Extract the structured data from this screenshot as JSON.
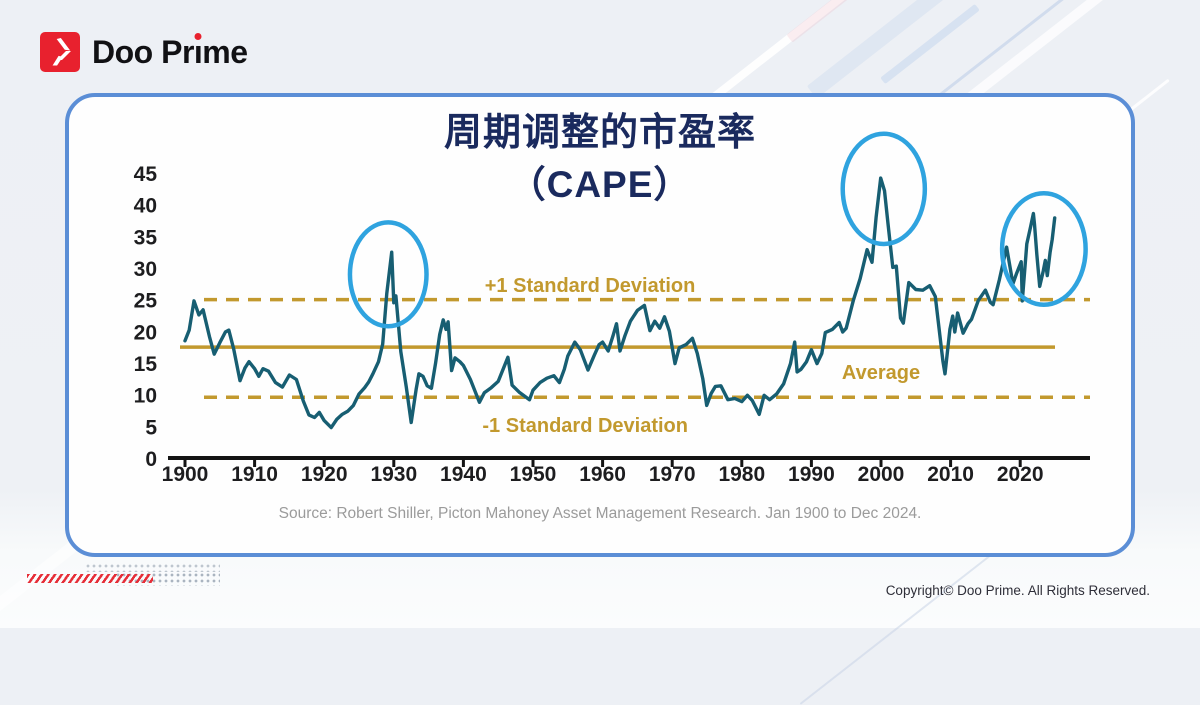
{
  "brand": {
    "part1": "Doo Pr",
    "i_letter": "ı",
    "part2": "me",
    "full_name": "Doo Prime"
  },
  "chart_data": {
    "type": "line",
    "title_line1": "周期调整的市盈率",
    "title_line2": "（CAPE）",
    "source": "Source: Robert Shiller, Picton Mahoney Asset Management Research. Jan 1900 to Dec 2024.",
    "x_ticks": [
      1900,
      1910,
      1920,
      1930,
      1940,
      1950,
      1960,
      1970,
      1980,
      1990,
      2000,
      2010,
      2020
    ],
    "y_ticks": [
      0,
      5,
      10,
      15,
      20,
      25,
      30,
      35,
      40,
      45
    ],
    "xlim": [
      1897,
      2026
    ],
    "ylim": [
      0,
      47
    ],
    "grid": false,
    "line_color": "#175E72",
    "axis_color": "#141414",
    "reference_lines": [
      {
        "label": "+1 Standard Deviation",
        "value": 25,
        "style": "dashed",
        "color": "#C2992E",
        "label_year": 1958.2,
        "label_value": 26.2
      },
      {
        "label": "Average",
        "value": 17.5,
        "style": "solid",
        "color": "#C2992E",
        "label_year": 2000.0,
        "label_value": 12.5
      },
      {
        "label": "-1 Standard Deviation",
        "value": 9.6,
        "style": "dashed",
        "color": "#C2992E",
        "label_year": 1957.5,
        "label_value": 4.1
      }
    ],
    "annotations": {
      "circle_color": "#2FA3DF",
      "circles": [
        {
          "year": 1929.2,
          "value": 29.0,
          "rx_years": 5.5,
          "ry_values": 8.2,
          "name": "1929-peak-circle"
        },
        {
          "year": 2000.4,
          "value": 42.5,
          "rx_years": 5.9,
          "ry_values": 8.7,
          "name": "2000-peak-circle"
        },
        {
          "year": 2023.4,
          "value": 33.0,
          "rx_years": 6.0,
          "ry_values": 8.8,
          "name": "2021-2024-peak-circle"
        }
      ]
    },
    "series": [
      {
        "name": "CAPE",
        "color": "#175E72",
        "points": [
          [
            1900,
            18.5
          ],
          [
            1900.6,
            20.2
          ],
          [
            1901.3,
            24.8
          ],
          [
            1902,
            22.6
          ],
          [
            1902.6,
            23.4
          ],
          [
            1903.5,
            19.2
          ],
          [
            1904.2,
            16.4
          ],
          [
            1905,
            18.2
          ],
          [
            1905.8,
            19.9
          ],
          [
            1906.3,
            20.2
          ],
          [
            1907,
            17.2
          ],
          [
            1907.9,
            12.2
          ],
          [
            1908.6,
            14.2
          ],
          [
            1909.2,
            15.2
          ],
          [
            1910,
            14.1
          ],
          [
            1910.6,
            12.9
          ],
          [
            1911.2,
            14.1
          ],
          [
            1912,
            13.7
          ],
          [
            1913,
            11.9
          ],
          [
            1914,
            11.2
          ],
          [
            1915,
            13.1
          ],
          [
            1916,
            12.4
          ],
          [
            1917,
            9.0
          ],
          [
            1917.8,
            6.8
          ],
          [
            1918.6,
            6.4
          ],
          [
            1919.3,
            7.2
          ],
          [
            1920,
            5.9
          ],
          [
            1921,
            4.8
          ],
          [
            1921.8,
            6.1
          ],
          [
            1922.6,
            6.9
          ],
          [
            1923.4,
            7.4
          ],
          [
            1924.2,
            8.3
          ],
          [
            1925,
            10.1
          ],
          [
            1925.8,
            11.1
          ],
          [
            1926.4,
            12.0
          ],
          [
            1927,
            13.3
          ],
          [
            1927.8,
            15.2
          ],
          [
            1928.4,
            18.0
          ],
          [
            1929,
            26.0
          ],
          [
            1929.7,
            32.5
          ],
          [
            1930,
            24.5
          ],
          [
            1930.3,
            25.6
          ],
          [
            1931,
            16.8
          ],
          [
            1931.8,
            11.2
          ],
          [
            1932.5,
            5.6
          ],
          [
            1933.2,
            10.8
          ],
          [
            1933.6,
            13.3
          ],
          [
            1934.2,
            12.9
          ],
          [
            1934.8,
            11.4
          ],
          [
            1935.4,
            11.0
          ],
          [
            1936,
            15.0
          ],
          [
            1936.6,
            19.5
          ],
          [
            1937.1,
            21.8
          ],
          [
            1937.5,
            20.3
          ],
          [
            1937.8,
            21.5
          ],
          [
            1938.3,
            13.8
          ],
          [
            1938.8,
            15.8
          ],
          [
            1939.5,
            15.2
          ],
          [
            1940,
            14.6
          ],
          [
            1941,
            12.4
          ],
          [
            1942.3,
            8.8
          ],
          [
            1943,
            10.3
          ],
          [
            1944,
            11.1
          ],
          [
            1945,
            12.1
          ],
          [
            1946.4,
            15.9
          ],
          [
            1947,
            11.5
          ],
          [
            1948,
            10.4
          ],
          [
            1949.5,
            9.2
          ],
          [
            1950,
            10.7
          ],
          [
            1951,
            11.9
          ],
          [
            1952,
            12.6
          ],
          [
            1953,
            13.0
          ],
          [
            1953.8,
            11.9
          ],
          [
            1954.5,
            14.0
          ],
          [
            1955,
            16.1
          ],
          [
            1956,
            18.3
          ],
          [
            1956.8,
            17.1
          ],
          [
            1957.9,
            13.9
          ],
          [
            1958.8,
            16.2
          ],
          [
            1959.5,
            17.9
          ],
          [
            1960,
            18.3
          ],
          [
            1960.8,
            16.9
          ],
          [
            1961.5,
            19.3
          ],
          [
            1962,
            21.2
          ],
          [
            1962.5,
            16.9
          ],
          [
            1963.2,
            19.3
          ],
          [
            1964,
            21.6
          ],
          [
            1965,
            23.3
          ],
          [
            1966,
            24.1
          ],
          [
            1966.8,
            20.1
          ],
          [
            1967.5,
            21.6
          ],
          [
            1968.2,
            20.5
          ],
          [
            1968.9,
            22.3
          ],
          [
            1969.6,
            20.0
          ],
          [
            1970.4,
            14.9
          ],
          [
            1971,
            17.4
          ],
          [
            1972,
            17.9
          ],
          [
            1972.9,
            18.9
          ],
          [
            1973.6,
            16.5
          ],
          [
            1974.4,
            12.5
          ],
          [
            1974.95,
            8.3
          ],
          [
            1975.6,
            10.2
          ],
          [
            1976.2,
            11.3
          ],
          [
            1977,
            11.4
          ],
          [
            1978,
            9.2
          ],
          [
            1979,
            9.4
          ],
          [
            1980,
            8.9
          ],
          [
            1980.8,
            9.9
          ],
          [
            1981.5,
            9.1
          ],
          [
            1982.5,
            6.9
          ],
          [
            1983.2,
            9.9
          ],
          [
            1984,
            9.2
          ],
          [
            1985,
            10.1
          ],
          [
            1986,
            11.7
          ],
          [
            1987,
            14.9
          ],
          [
            1987.6,
            18.3
          ],
          [
            1987.95,
            13.6
          ],
          [
            1988.5,
            14.0
          ],
          [
            1989.3,
            15.2
          ],
          [
            1990,
            17.1
          ],
          [
            1990.8,
            14.9
          ],
          [
            1991.5,
            16.5
          ],
          [
            1992,
            19.8
          ],
          [
            1993,
            20.3
          ],
          [
            1994,
            21.4
          ],
          [
            1994.5,
            19.9
          ],
          [
            1995,
            20.5
          ],
          [
            1996,
            24.8
          ],
          [
            1997,
            28.3
          ],
          [
            1998,
            32.9
          ],
          [
            1998.7,
            30.9
          ],
          [
            1999.3,
            38.0
          ],
          [
            1999.95,
            44.2
          ],
          [
            2000.5,
            42.2
          ],
          [
            2001,
            37.0
          ],
          [
            2001.7,
            30.1
          ],
          [
            2002.2,
            30.3
          ],
          [
            2002.8,
            22.1
          ],
          [
            2003.2,
            21.3
          ],
          [
            2004,
            27.7
          ],
          [
            2005,
            26.6
          ],
          [
            2006,
            26.5
          ],
          [
            2007,
            27.2
          ],
          [
            2007.8,
            25.5
          ],
          [
            2008.9,
            15.3
          ],
          [
            2009.2,
            13.3
          ],
          [
            2009.9,
            20.3
          ],
          [
            2010.3,
            22.4
          ],
          [
            2010.6,
            19.9
          ],
          [
            2011,
            22.9
          ],
          [
            2011.8,
            19.7
          ],
          [
            2012.5,
            21.2
          ],
          [
            2013,
            21.9
          ],
          [
            2014,
            24.9
          ],
          [
            2015,
            26.5
          ],
          [
            2015.7,
            24.6
          ],
          [
            2016.1,
            24.2
          ],
          [
            2017,
            28.1
          ],
          [
            2018.05,
            33.3
          ],
          [
            2018.95,
            27.5
          ],
          [
            2019.5,
            29.2
          ],
          [
            2020.15,
            31.0
          ],
          [
            2020.3,
            24.8
          ],
          [
            2020.95,
            33.8
          ],
          [
            2021.5,
            36.5
          ],
          [
            2021.9,
            38.6
          ],
          [
            2022.05,
            36.9
          ],
          [
            2022.4,
            32.0
          ],
          [
            2022.8,
            27.1
          ],
          [
            2023.3,
            29.5
          ],
          [
            2023.6,
            31.2
          ],
          [
            2023.9,
            28.8
          ],
          [
            2024.3,
            32.5
          ],
          [
            2024.6,
            34.5
          ],
          [
            2024.95,
            37.9
          ]
        ]
      }
    ]
  },
  "footer": {
    "copyright": "Copyright© Doo Prime. All Rights Reserved."
  }
}
